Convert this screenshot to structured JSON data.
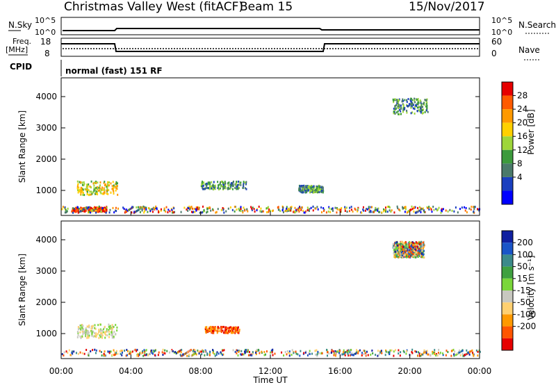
{
  "header": {
    "title": "Christmas Valley West (fitACF)",
    "beam": "Beam 15",
    "date": "15/Nov/2017"
  },
  "top_panels": {
    "nsky_label": "N.Sky",
    "nsky_ticks": [
      "10^5",
      "10^0"
    ],
    "nsearch_label": "N.Search",
    "nsearch_ticks": [
      "10^5",
      "10^0"
    ],
    "freq_label_1": "Freq.",
    "freq_label_2": "[MHz]",
    "freq_ticks": [
      "18",
      "8"
    ],
    "nave_label": "Nave",
    "nave_ticks": [
      "60",
      "0"
    ],
    "cpid_label": "CPID",
    "cpid_text": "normal (fast) 151 RF"
  },
  "chart_data": [
    {
      "type": "heatmap",
      "name": "power",
      "ylabel": "Slant Range [km]",
      "ylim": [
        200,
        4600
      ],
      "yticks": [
        "1000",
        "2000",
        "3000",
        "4000"
      ],
      "colorbar_label": "Power [dB]",
      "colorbar_ticks": [
        "28",
        "24",
        "20",
        "16",
        "12",
        "8",
        "4"
      ],
      "colorbar_colors": [
        "#e60000",
        "#ff5a00",
        "#ff9900",
        "#ffd000",
        "#9ed63a",
        "#3c9a3c",
        "#4a7a6a",
        "#1a3fbf",
        "#0000ff"
      ],
      "regions": [
        {
          "t": [
            0.9,
            3.2
          ],
          "r": [
            820,
            1260
          ],
          "level": "mid-high"
        },
        {
          "t": [
            0.6,
            2.6
          ],
          "r": [
            280,
            420
          ],
          "level": "high"
        },
        {
          "t": [
            8.0,
            10.6
          ],
          "r": [
            1000,
            1250
          ],
          "level": "mid"
        },
        {
          "t": [
            13.6,
            15.0
          ],
          "r": [
            900,
            1120
          ],
          "level": "mid"
        },
        {
          "t": [
            19.0,
            21.0
          ],
          "r": [
            3400,
            3900
          ],
          "level": "mid"
        },
        {
          "t": [
            0.0,
            24.0
          ],
          "r": [
            250,
            450
          ],
          "level": "mixed"
        }
      ]
    },
    {
      "type": "heatmap",
      "name": "velocity",
      "xlabel": "Time UT",
      "ylabel": "Slant Range [km]",
      "ylim": [
        200,
        4600
      ],
      "yticks": [
        "1000",
        "2000",
        "3000",
        "4000"
      ],
      "xticks": [
        "00:00",
        "04:00",
        "08:00",
        "12:00",
        "16:00",
        "20:00",
        "00:00"
      ],
      "colorbar_label": "Velocity [m s⁻¹]",
      "colorbar_ticks": [
        "200",
        "100",
        "50",
        "15",
        "-15",
        "-50",
        "-100",
        "-200"
      ],
      "colorbar_colors": [
        "#1020a0",
        "#1a55c8",
        "#3c8a8a",
        "#3fa040",
        "#7ad63a",
        "#c8c8c0",
        "#ffd070",
        "#ff9900",
        "#ff5500",
        "#e60000"
      ],
      "regions": [
        {
          "t": [
            0.9,
            3.2
          ],
          "r": [
            820,
            1260
          ],
          "level": "low-positive"
        },
        {
          "t": [
            8.2,
            10.2
          ],
          "r": [
            980,
            1180
          ],
          "level": "negative"
        },
        {
          "t": [
            19.0,
            20.8
          ],
          "r": [
            3400,
            3900
          ],
          "level": "mixed"
        },
        {
          "t": [
            0.0,
            24.0
          ],
          "r": [
            250,
            450
          ],
          "level": "mixed"
        }
      ]
    }
  ]
}
